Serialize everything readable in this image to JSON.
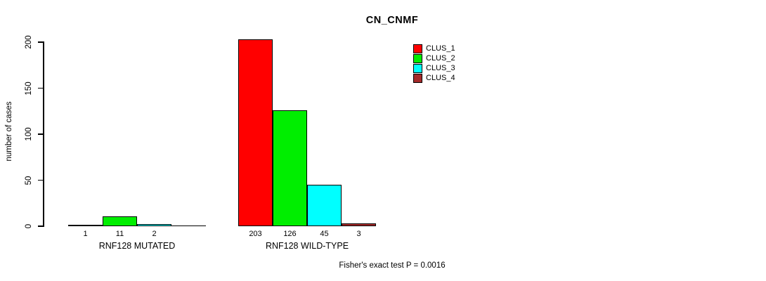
{
  "chart_data": {
    "type": "bar",
    "title": "CN_CNMF",
    "ylabel": "number of cases",
    "xlabel": "",
    "groups": [
      {
        "label": "RNF128 MUTATED"
      },
      {
        "label": "RNF128 WILD-TYPE"
      }
    ],
    "series": [
      {
        "name": "CLUS_1",
        "color": "#ff0000",
        "values": [
          1,
          203
        ]
      },
      {
        "name": "CLUS_2",
        "color": "#00ee00",
        "values": [
          11,
          126
        ]
      },
      {
        "name": "CLUS_3",
        "color": "#00ffff",
        "values": [
          2,
          45
        ]
      },
      {
        "name": "CLUS_4",
        "color": "#a52a2a",
        "values": [
          0,
          3
        ]
      }
    ],
    "bar_value_labels": [
      [
        "1",
        "11",
        "2",
        ""
      ],
      [
        "203",
        "126",
        "45",
        "3"
      ]
    ],
    "yticks": [
      0,
      50,
      100,
      150,
      200
    ],
    "ylim": [
      0,
      200
    ],
    "grid": false,
    "legend_position": "top-right",
    "annotation": "Fisher's exact test P = 0.0016"
  }
}
